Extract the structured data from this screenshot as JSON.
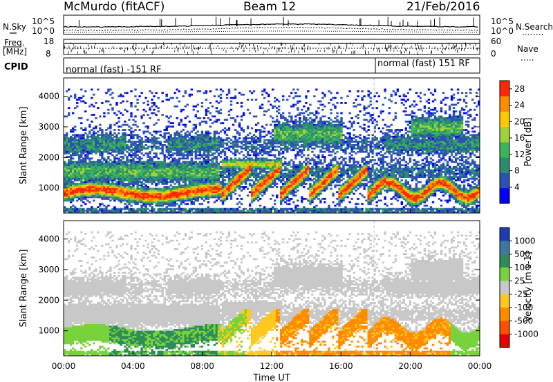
{
  "header": {
    "station": "McMurdo (fitACF)",
    "beam": "Beam 12",
    "date": "21/Feb/2016"
  },
  "strip": {
    "nsky_label": "N.Sky",
    "nsearch_label": "N.Search",
    "freq_label_1": "Freq.",
    "freq_label_2": "[MHz]",
    "nave_label": "Nave",
    "cpid_label": "CPID",
    "cpid_segments": [
      "normal (fast) -151 RF",
      "normal (fast) 151 RF"
    ],
    "noise_ticks": [
      "10^5",
      "10^0"
    ],
    "freq_ticks": [
      "18",
      "8"
    ],
    "nave_ticks": [
      "60",
      "0"
    ]
  },
  "chart_data": [
    {
      "type": "heatmap",
      "parameter": "Power",
      "ylabel": "Slant Range [km]",
      "xlabel": "",
      "colorbar_label": "Power [dB]",
      "colorbar_ticks": [
        4,
        8,
        12,
        16,
        20,
        24,
        28
      ],
      "colorbar_range": [
        0,
        30
      ],
      "colormap": [
        "#0000ff",
        "#2c50b4",
        "#2d8c70",
        "#3cb45a",
        "#a0d23c",
        "#ffc800",
        "#ff8c00",
        "#ff2800"
      ],
      "x_range_hours": [
        0,
        24
      ],
      "ylim": [
        180,
        4600
      ],
      "y_ticks": [
        1000,
        2000,
        3000,
        4000
      ],
      "x_ticks": [
        "00:00",
        "04:00",
        "08:00",
        "12:00",
        "16:00",
        "20:00",
        "00:00"
      ]
    },
    {
      "type": "heatmap",
      "parameter": "Velocity",
      "ylabel": "Slant Range [km]",
      "xlabel": "Time UT",
      "colorbar_label": "Velocity [m s-1]",
      "colorbar_ticks": [
        1000,
        500,
        100,
        25,
        -25,
        -100,
        -500,
        -1000
      ],
      "colormap": [
        "#1e3cb4",
        "#3c78a0",
        "#2d8c5a",
        "#78d23c",
        "#c8c8c8",
        "#ffc81e",
        "#ff8c00",
        "#ff5000",
        "#e60000"
      ],
      "x_range_hours": [
        0,
        24
      ],
      "ylim": [
        180,
        4600
      ],
      "y_ticks": [
        1000,
        2000,
        3000,
        4000
      ],
      "x_ticks": [
        "00:00",
        "04:00",
        "08:00",
        "12:00",
        "16:00",
        "20:00",
        "00:00"
      ]
    }
  ]
}
